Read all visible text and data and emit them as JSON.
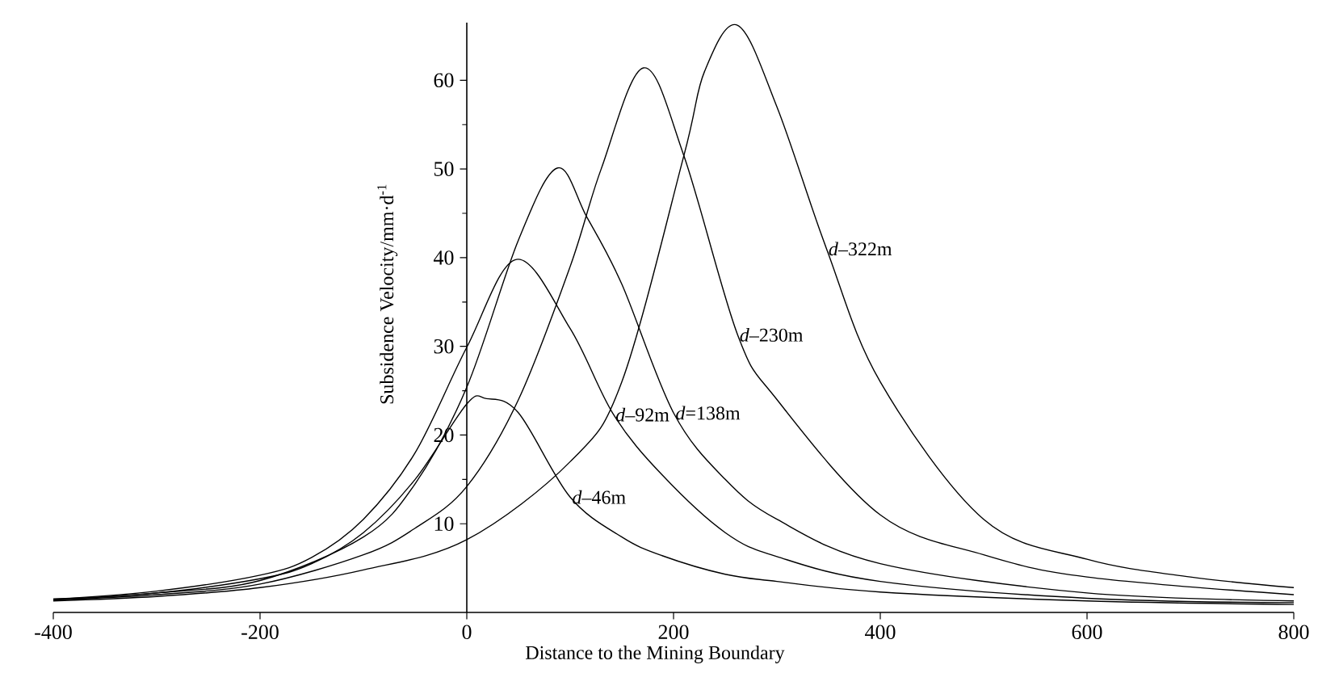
{
  "chart_data": {
    "type": "line",
    "xlabel": "Distance to the Mining Boundary",
    "ylabel": "Subsidence Velocity/mm·d$^{-1}$",
    "xlim": [
      -400,
      800
    ],
    "ylim": [
      0,
      66.5
    ],
    "xticks": [
      -400,
      -200,
      0,
      200,
      400,
      600,
      800
    ],
    "yticks": [
      10,
      20,
      30,
      40,
      50,
      60
    ],
    "grid": false,
    "marker": "none",
    "line_style": "solid",
    "series": [
      {
        "name": "*d*–46m",
        "color": "#000000",
        "x": [
          -400,
          -300,
          -200,
          -150,
          -100,
          -50,
          0,
          19,
          50,
          100,
          150,
          189,
          250,
          300,
          400,
          600,
          800
        ],
        "values": [
          1.5,
          2.2,
          3.8,
          5.5,
          9,
          15,
          23.5,
          24.1,
          22.5,
          13,
          8.5,
          6.4,
          4.3,
          3.5,
          2.3,
          1.3,
          0.9
        ]
      },
      {
        "name": "*d*–92m",
        "color": "#000000",
        "x": [
          -400,
          -300,
          -200,
          -150,
          -100,
          -50,
          0,
          48,
          100,
          142,
          189,
          250,
          300,
          400,
          600,
          800
        ],
        "values": [
          1.5,
          2.4,
          4.2,
          6.2,
          10.5,
          18,
          29.9,
          39.8,
          32,
          22.3,
          15.5,
          9,
          6.3,
          3.5,
          1.6,
          1.1
        ]
      },
      {
        "name": "*d*=138m",
        "color": "#000000",
        "x": [
          -400,
          -300,
          -200,
          -100,
          -50,
          0,
          50,
          87.5,
          116,
          150,
          200,
          250,
          300,
          400,
          600,
          800
        ],
        "values": [
          1.4,
          2.2,
          3.6,
          8.5,
          14.5,
          25.4,
          42,
          50.1,
          44.6,
          37,
          22.5,
          15,
          10.5,
          5.5,
          2.2,
          1.3
        ]
      },
      {
        "name": "*d*–230m",
        "color": "#000000",
        "x": [
          -400,
          -300,
          -200,
          -100,
          -50,
          0,
          50,
          100,
          130,
          171,
          210,
          262,
          300,
          400,
          500,
          600,
          800
        ],
        "values": [
          1.4,
          2,
          3.2,
          6.5,
          9.5,
          14.2,
          24,
          39,
          50,
          61.4,
          51.5,
          31.3,
          24,
          11,
          6.5,
          4,
          2
        ]
      },
      {
        "name": "*d*–322m",
        "color": "#000000",
        "x": [
          -400,
          -300,
          -200,
          -100,
          0,
          100,
          150,
          210,
          230,
          262,
          300,
          348,
          400,
          500,
          600,
          700,
          800
        ],
        "values": [
          1.3,
          1.8,
          2.8,
          4.8,
          8.2,
          17,
          26,
          51.5,
          61,
          66.2,
          57,
          41,
          26,
          10.5,
          6,
          4,
          2.8
        ]
      }
    ]
  }
}
